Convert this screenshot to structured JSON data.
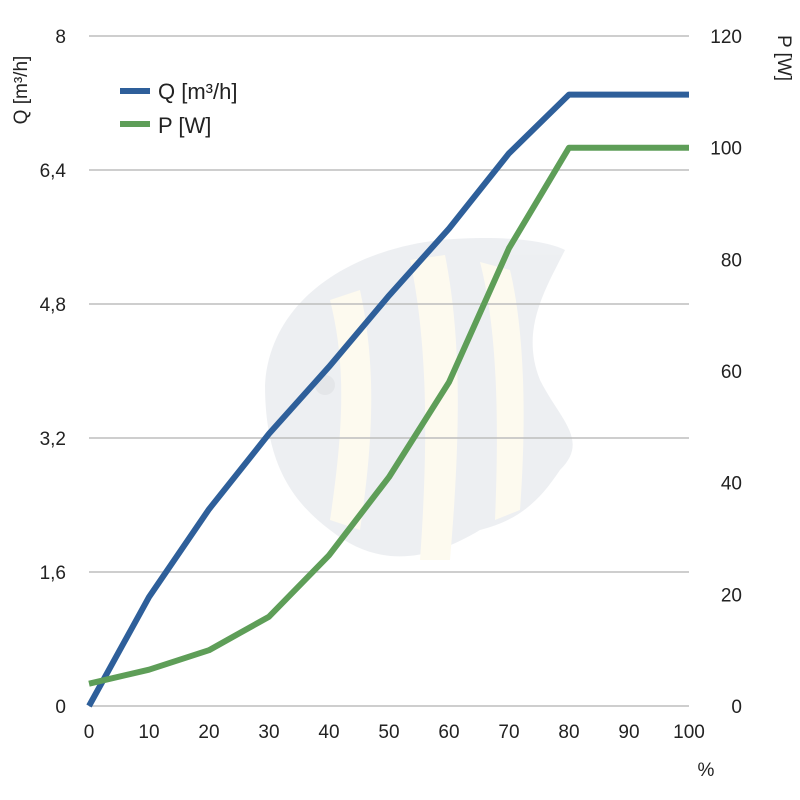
{
  "chart_data": {
    "type": "line",
    "x_unit_label": "%",
    "x_ticks": [
      "0",
      "10",
      "20",
      "30",
      "40",
      "50",
      "60",
      "70",
      "80",
      "90",
      "100"
    ],
    "xlim": [
      0,
      100
    ],
    "left_axis": {
      "label": "Q [m³/h]",
      "ylim": [
        0,
        8
      ],
      "ticks": [
        "0",
        "1,6",
        "3,2",
        "4,8",
        "6,4",
        "8"
      ],
      "tick_values": [
        0,
        1.6,
        3.2,
        4.8,
        6.4,
        8
      ]
    },
    "right_axis": {
      "label": "P [W]",
      "ylim": [
        0,
        120
      ],
      "ticks": [
        "0",
        "20",
        "40",
        "60",
        "80",
        "100",
        "120"
      ],
      "tick_values": [
        0,
        20,
        40,
        60,
        80,
        100,
        120
      ]
    },
    "grid": true,
    "legend_position": "top-left",
    "series": [
      {
        "name": "Q [m³/h]",
        "axis": "left",
        "color": "#2e5f9a",
        "x": [
          0,
          10,
          20,
          30,
          40,
          50,
          60,
          70,
          80,
          100
        ],
        "y": [
          0,
          1.3,
          2.35,
          3.25,
          4.05,
          4.9,
          5.7,
          6.6,
          7.3,
          7.3
        ]
      },
      {
        "name": "P [W]",
        "axis": "right",
        "color": "#5e9e58",
        "x": [
          0,
          10,
          20,
          30,
          40,
          50,
          60,
          70,
          80,
          100
        ],
        "y": [
          4,
          6.5,
          10,
          16,
          27,
          41,
          58,
          82,
          100,
          100
        ]
      }
    ]
  }
}
